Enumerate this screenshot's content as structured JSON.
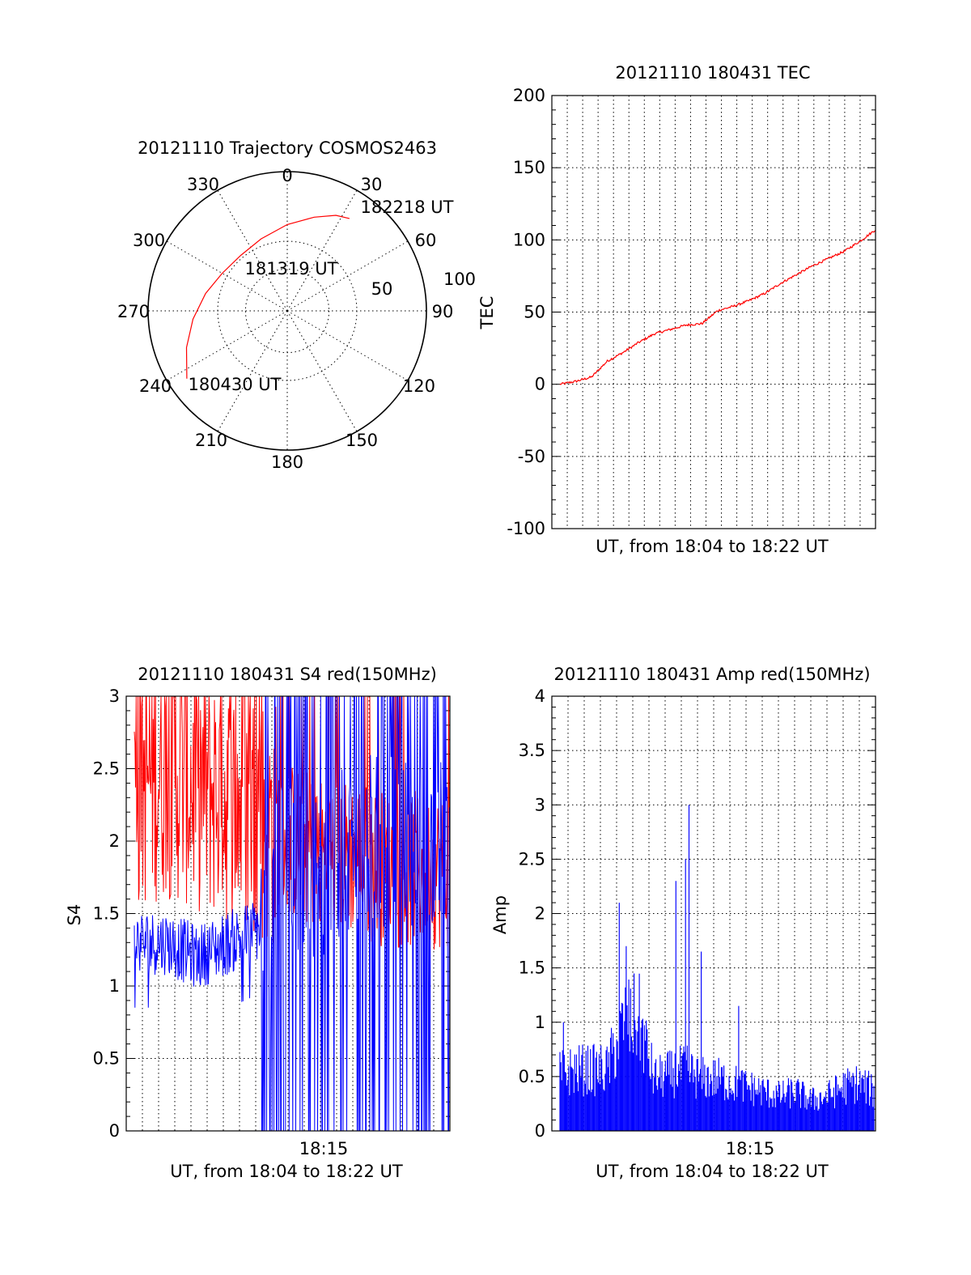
{
  "chart_data": [
    {
      "type": "polar",
      "title": "20121110 Trajectory COSMOS2463",
      "azimuth_labels": [
        "0",
        "30",
        "60",
        "90",
        "120",
        "150",
        "180",
        "210",
        "240",
        "270",
        "300",
        "330"
      ],
      "radial_labels": [
        "50",
        "100"
      ],
      "grid": true,
      "series": [
        {
          "color": "#ff0000",
          "points": [
            {
              "azimuth": 236,
              "radius": 87
            },
            {
              "azimuth": 250,
              "radius": 77
            },
            {
              "azimuth": 265,
              "radius": 68
            },
            {
              "azimuth": 282,
              "radius": 60
            },
            {
              "azimuth": 300,
              "radius": 54
            },
            {
              "azimuth": 320,
              "radius": 52
            },
            {
              "azimuth": 340,
              "radius": 55
            },
            {
              "azimuth": 0,
              "radius": 62
            },
            {
              "azimuth": 16,
              "radius": 70
            },
            {
              "azimuth": 27,
              "radius": 77
            },
            {
              "azimuth": 34,
              "radius": 80
            }
          ]
        }
      ],
      "annotations": [
        {
          "text": "182218 UT",
          "azimuth": 37,
          "radius": 88
        },
        {
          "text": "181319 UT",
          "azimuth": 0,
          "radius": 30
        },
        {
          "text": "180430 UT",
          "azimuth": 212,
          "radius": 70
        }
      ]
    },
    {
      "type": "line",
      "title": "20121110 180431 TEC",
      "xlabel": "UT, from 18:04 to 18:22 UT",
      "ylabel": "TEC",
      "ylim": [
        -100,
        200
      ],
      "yticks": [
        -100,
        -50,
        0,
        50,
        100,
        150,
        200
      ],
      "grid": true,
      "series": [
        {
          "color": "#ff0000",
          "x": [
            0.0,
            0.05,
            0.1,
            0.15,
            0.2,
            0.25,
            0.3,
            0.35,
            0.4,
            0.45,
            0.5,
            0.55,
            0.6,
            0.65,
            0.7,
            0.75,
            0.8,
            0.85,
            0.9,
            0.95,
            1.0
          ],
          "values": [
            0,
            2,
            5,
            16,
            22,
            29,
            35,
            38,
            41,
            42,
            51,
            54,
            58,
            63,
            70,
            76,
            82,
            87,
            92,
            99,
            107
          ]
        }
      ]
    },
    {
      "type": "line",
      "title": "20121110 180431 S4 red(150MHz)",
      "xlabel": "UT, from 18:04 to 18:22 UT",
      "ylabel": "S4",
      "xtick_label": "18:15",
      "ylim": [
        0,
        3
      ],
      "yticks": [
        "0",
        "0.5",
        "1",
        "1.5",
        "2",
        "2.5",
        "3"
      ],
      "grid": true,
      "series": [
        {
          "color": "#ff0000",
          "x": [
            0.0,
            0.1,
            0.2,
            0.3,
            0.4,
            0.5,
            0.6,
            0.7,
            0.8,
            0.9,
            1.0
          ],
          "values": [
            2.4,
            2.5,
            2.4,
            2.3,
            2.2,
            2.0,
            1.9,
            1.9,
            1.8,
            1.8,
            1.8
          ]
        },
        {
          "color": "#0000ff",
          "x": [
            0.0,
            0.1,
            0.2,
            0.3,
            0.4,
            0.5,
            0.6,
            0.7,
            0.8,
            0.9,
            1.0
          ],
          "values": [
            1.3,
            1.3,
            1.2,
            1.3,
            1.4,
            1.8,
            1.8,
            2.0,
            2.0,
            2.0,
            2.0
          ]
        }
      ]
    },
    {
      "type": "bar",
      "title": "20121110 180431 Amp red(150MHz)",
      "xlabel": "UT, from 18:04 to 18:22 UT",
      "ylabel": "Amp",
      "xtick_label": "18:15",
      "ylim": [
        0,
        4
      ],
      "yticks": [
        "0",
        "0.5",
        "1",
        "1.5",
        "2",
        "2.5",
        "3",
        "3.5",
        "4"
      ],
      "grid": true,
      "series": [
        {
          "color": "#0000ff",
          "x": [
            0.0,
            0.05,
            0.1,
            0.15,
            0.2,
            0.25,
            0.3,
            0.35,
            0.4,
            0.45,
            0.5,
            0.55,
            0.6,
            0.65,
            0.7,
            0.75,
            0.8,
            0.85,
            0.9,
            0.95,
            1.0
          ],
          "values": [
            0.65,
            0.7,
            0.7,
            0.7,
            1.2,
            1.3,
            0.6,
            0.65,
            0.7,
            0.6,
            0.6,
            0.55,
            0.5,
            0.45,
            0.4,
            0.45,
            0.35,
            0.4,
            0.5,
            0.55,
            0.45
          ]
        }
      ]
    }
  ]
}
